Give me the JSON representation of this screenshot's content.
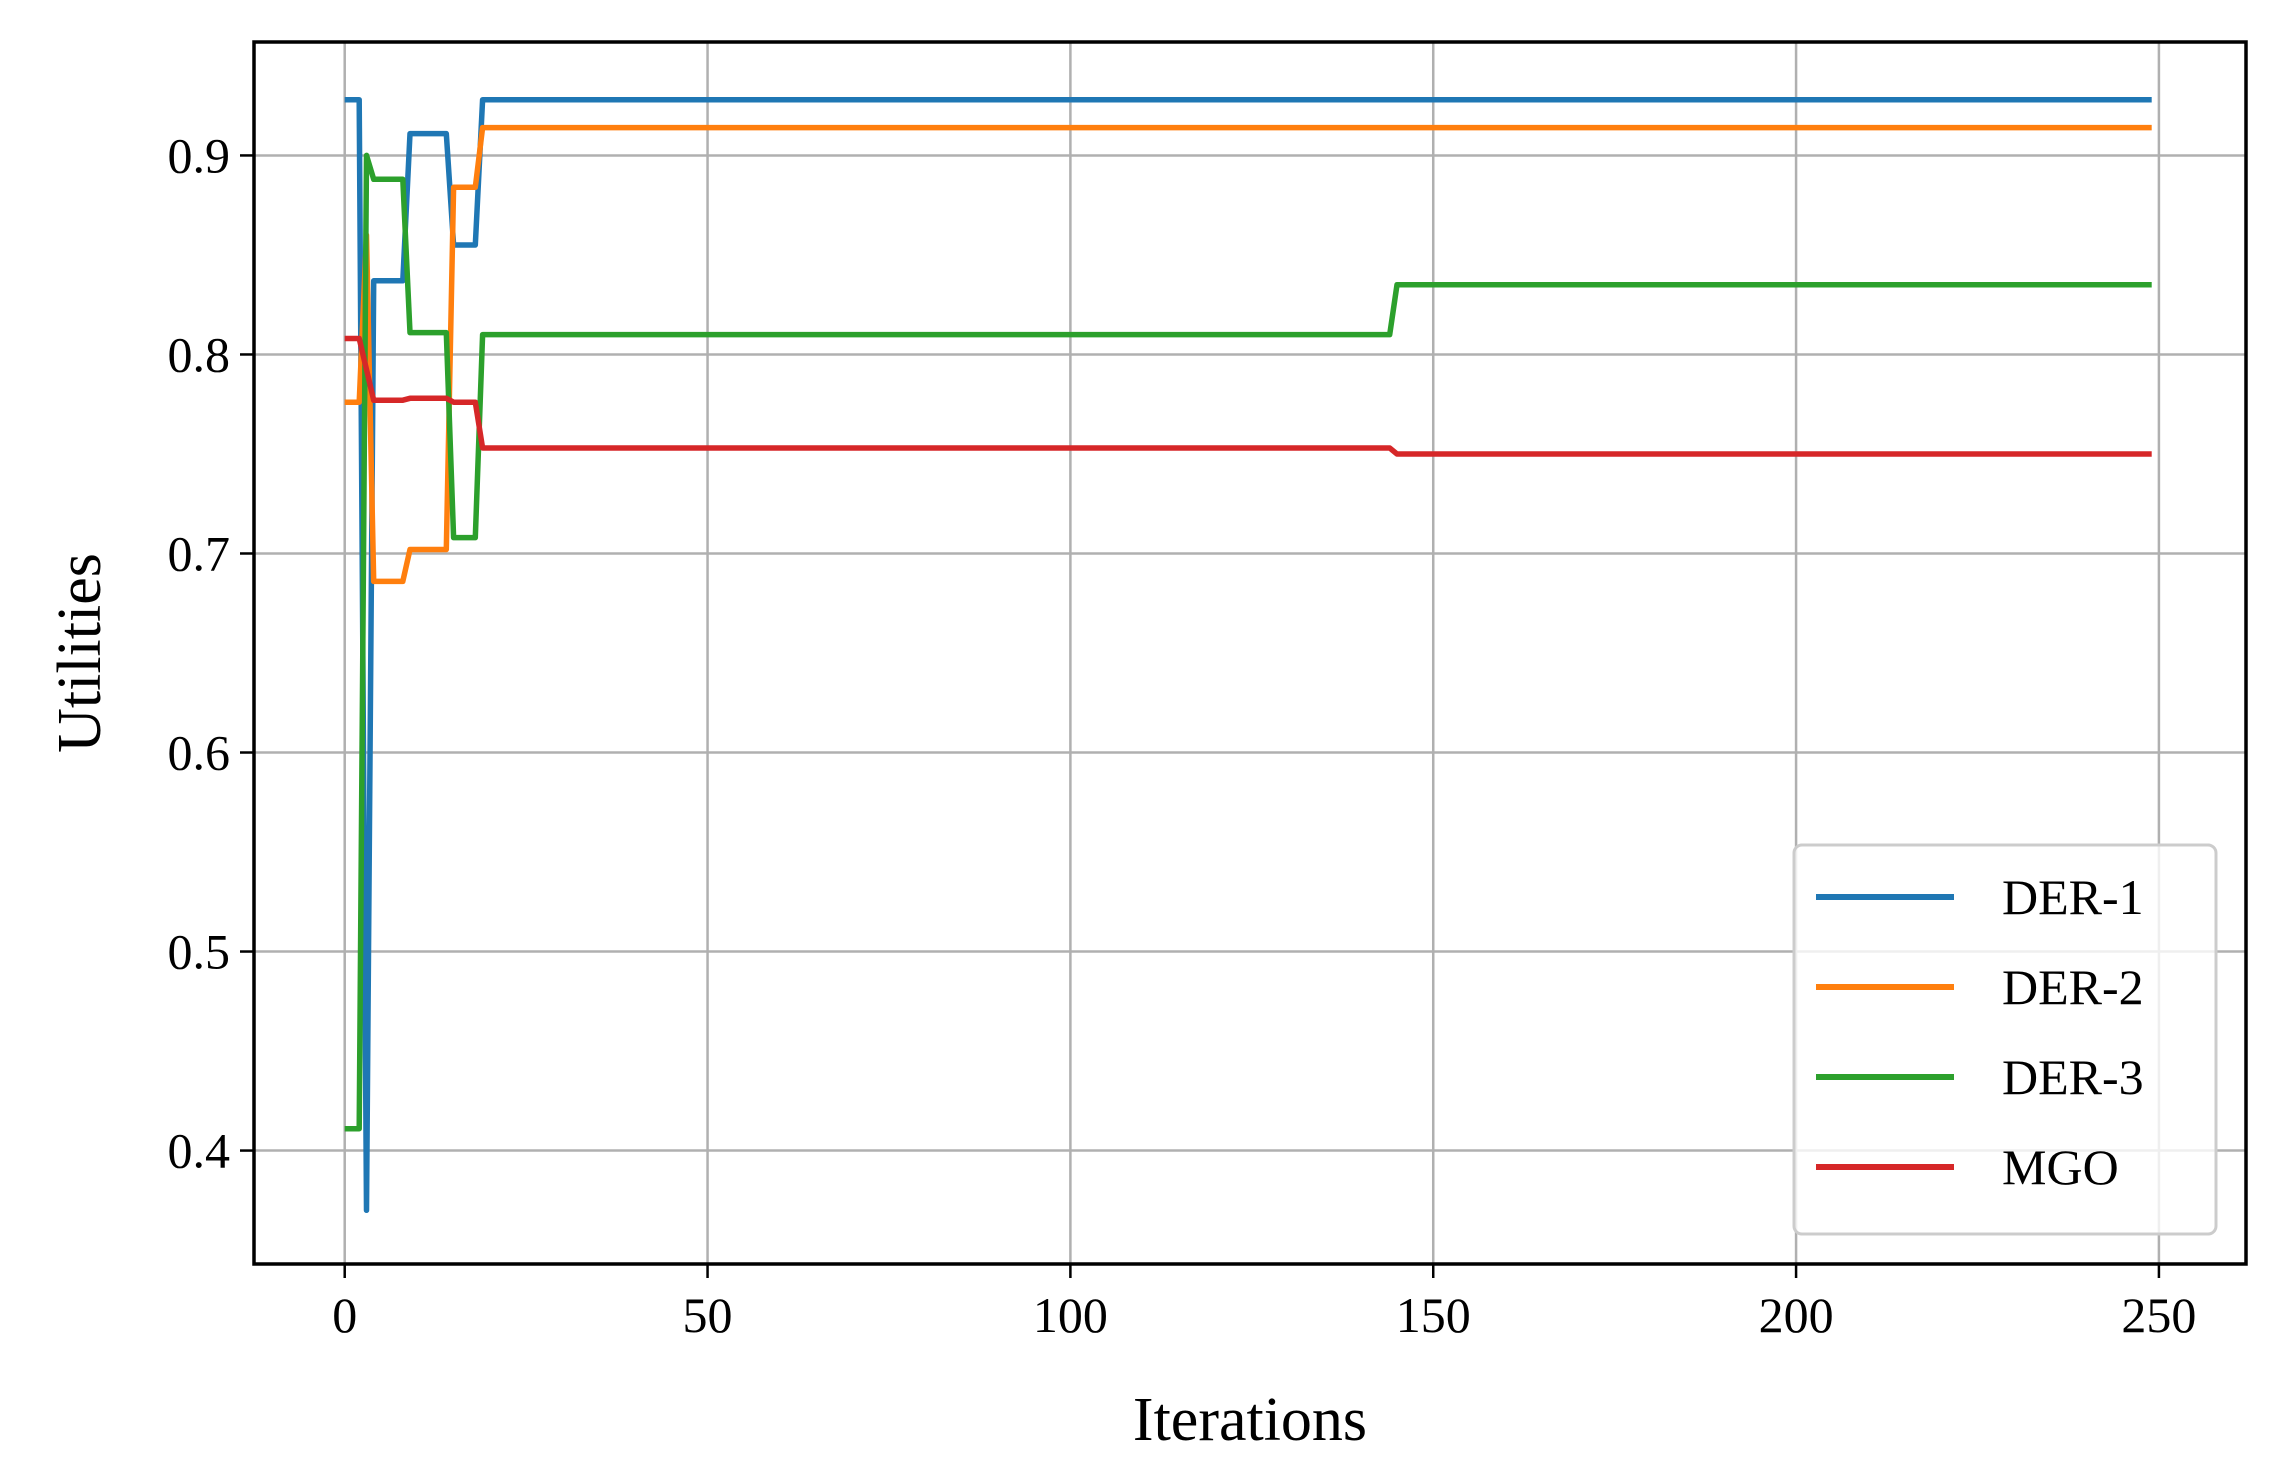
{
  "chart_data": {
    "type": "line",
    "title": "",
    "xlabel": "Iterations",
    "ylabel": "Utilities",
    "xlim": [
      -12.5,
      262
    ],
    "ylim": [
      0.343,
      0.957
    ],
    "xticks": [
      0,
      50,
      100,
      150,
      200,
      250
    ],
    "xtick_labels": [
      "0",
      "50",
      "100",
      "150",
      "200",
      "250"
    ],
    "yticks": [
      0.4,
      0.5,
      0.6,
      0.7,
      0.8,
      0.9
    ],
    "ytick_labels": [
      "0.4",
      "0.5",
      "0.6",
      "0.7",
      "0.8",
      "0.9"
    ],
    "grid": true,
    "legend_position": "lower-right",
    "series": [
      {
        "name": "DER-1",
        "color": "#1f77b4",
        "points": [
          [
            0,
            0.928
          ],
          [
            2,
            0.928
          ],
          [
            3,
            0.37
          ],
          [
            4,
            0.837
          ],
          [
            8,
            0.837
          ],
          [
            9,
            0.911
          ],
          [
            14,
            0.911
          ],
          [
            15,
            0.855
          ],
          [
            18,
            0.855
          ],
          [
            19,
            0.928
          ],
          [
            249,
            0.928
          ]
        ]
      },
      {
        "name": "DER-2",
        "color": "#ff7f0e",
        "points": [
          [
            0,
            0.776
          ],
          [
            2,
            0.776
          ],
          [
            3,
            0.86
          ],
          [
            4,
            0.686
          ],
          [
            8,
            0.686
          ],
          [
            9,
            0.702
          ],
          [
            14,
            0.702
          ],
          [
            15,
            0.884
          ],
          [
            18,
            0.884
          ],
          [
            19,
            0.914
          ],
          [
            249,
            0.914
          ]
        ]
      },
      {
        "name": "DER-3",
        "color": "#2ca02c",
        "points": [
          [
            0,
            0.411
          ],
          [
            2,
            0.411
          ],
          [
            3,
            0.9
          ],
          [
            4,
            0.888
          ],
          [
            8,
            0.888
          ],
          [
            9,
            0.811
          ],
          [
            14,
            0.811
          ],
          [
            15,
            0.708
          ],
          [
            18,
            0.708
          ],
          [
            19,
            0.81
          ],
          [
            144,
            0.81
          ],
          [
            145,
            0.835
          ],
          [
            249,
            0.835
          ]
        ]
      },
      {
        "name": "MGO",
        "color": "#d62728",
        "points": [
          [
            0,
            0.808
          ],
          [
            2,
            0.808
          ],
          [
            4,
            0.777
          ],
          [
            8,
            0.777
          ],
          [
            9,
            0.778
          ],
          [
            14,
            0.778
          ],
          [
            15,
            0.776
          ],
          [
            18,
            0.776
          ],
          [
            19,
            0.753
          ],
          [
            144,
            0.753
          ],
          [
            145,
            0.75
          ],
          [
            249,
            0.75
          ]
        ]
      }
    ]
  }
}
